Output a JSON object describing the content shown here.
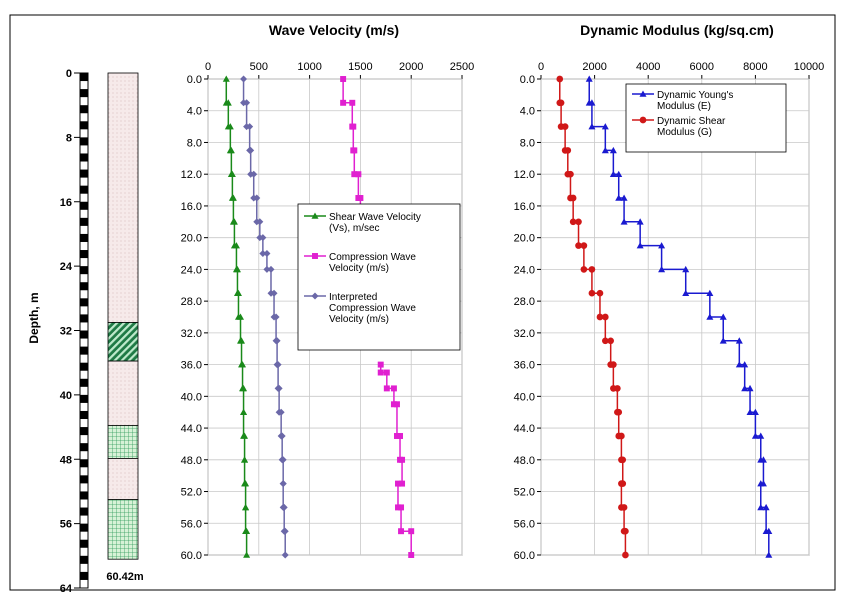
{
  "depth_log": {
    "ylabel": "Depth, m",
    "ticks": [
      "0",
      "8",
      "16",
      "24",
      "32",
      "40",
      "48",
      "56",
      "64"
    ],
    "tick_values": [
      0,
      8,
      16,
      24,
      32,
      40,
      48,
      56,
      64
    ],
    "total_depth_label": "60.42m",
    "layers": [
      {
        "from": 0,
        "to": 31.0,
        "pattern": "dots",
        "color": "#f4e6e6"
      },
      {
        "from": 31.0,
        "to": 35.8,
        "pattern": "diagonal",
        "color": "#2e9b5a"
      },
      {
        "from": 35.8,
        "to": 43.8,
        "pattern": "dots",
        "color": "#f4e6e6"
      },
      {
        "from": 43.8,
        "to": 47.9,
        "pattern": "grid",
        "color": "#2e9b5a"
      },
      {
        "from": 47.9,
        "to": 53.0,
        "pattern": "dots",
        "color": "#f4e6e6"
      },
      {
        "from": 53.0,
        "to": 60.42,
        "pattern": "grid",
        "color": "#2e9b5a"
      }
    ]
  },
  "chart_data": [
    {
      "type": "line",
      "title": "Wave Velocity (m/s)",
      "x_ticks": [
        "0",
        "500",
        "1000",
        "1500",
        "2000",
        "2500"
      ],
      "xlim": [
        0,
        2500
      ],
      "y_ticks": [
        "0.0",
        "4.0",
        "8.0",
        "12.0",
        "16.0",
        "20.0",
        "24.0",
        "28.0",
        "32.0",
        "36.0",
        "40.0",
        "44.0",
        "48.0",
        "52.0",
        "56.0",
        "60.0"
      ],
      "ylim": [
        0,
        60
      ],
      "grid": true,
      "legend_position": "right",
      "series": [
        {
          "name": "Shear Wave Velocity (Vs), m/sec",
          "color": "#1a8a1a",
          "marker": "triangle",
          "points": [
            [
              180,
              0
            ],
            [
              180,
              3
            ],
            [
              200,
              3
            ],
            [
              200,
              6
            ],
            [
              220,
              6
            ],
            [
              220,
              9
            ],
            [
              230,
              9
            ],
            [
              230,
              12
            ],
            [
              240,
              12
            ],
            [
              240,
              15
            ],
            [
              250,
              15
            ],
            [
              250,
              18
            ],
            [
              260,
              18
            ],
            [
              260,
              21
            ],
            [
              280,
              21
            ],
            [
              280,
              24
            ],
            [
              290,
              24
            ],
            [
              290,
              27
            ],
            [
              300,
              27
            ],
            [
              300,
              30
            ],
            [
              320,
              30
            ],
            [
              320,
              33
            ],
            [
              330,
              33
            ],
            [
              330,
              36
            ],
            [
              340,
              36
            ],
            [
              340,
              39
            ],
            [
              350,
              39
            ],
            [
              350,
              42
            ],
            [
              350,
              42
            ],
            [
              350,
              45
            ],
            [
              360,
              45
            ],
            [
              360,
              48
            ],
            [
              360,
              48
            ],
            [
              360,
              51
            ],
            [
              370,
              51
            ],
            [
              370,
              54
            ],
            [
              370,
              54
            ],
            [
              370,
              57
            ],
            [
              380,
              57
            ],
            [
              380,
              60
            ]
          ]
        },
        {
          "name": "Compression Wave Velocity (m/s)",
          "color": "#e020d0",
          "marker": "square",
          "points": [
            [
              1330,
              0
            ],
            [
              1330,
              3
            ],
            [
              1420,
              3
            ],
            [
              1420,
              6
            ],
            [
              1430,
              6
            ],
            [
              1430,
              9
            ],
            [
              1440,
              9
            ],
            [
              1440,
              12
            ],
            [
              1480,
              12
            ],
            [
              1480,
              15
            ],
            [
              1500,
              15
            ],
            [
              1500,
              18
            ],
            [
              1700,
              36
            ],
            [
              1700,
              37
            ],
            [
              1760,
              37
            ],
            [
              1760,
              39
            ],
            [
              1830,
              39
            ],
            [
              1830,
              41
            ],
            [
              1860,
              41
            ],
            [
              1860,
              45
            ],
            [
              1890,
              45
            ],
            [
              1890,
              48
            ],
            [
              1910,
              48
            ],
            [
              1910,
              51
            ],
            [
              1870,
              51
            ],
            [
              1870,
              54
            ],
            [
              1900,
              54
            ],
            [
              1900,
              57
            ],
            [
              2000,
              57
            ],
            [
              2000,
              60
            ]
          ]
        },
        {
          "name": "Interpreted Compression Wave Velocity (m/s)",
          "color": "#6b68a8",
          "marker": "diamond",
          "points": [
            [
              350,
              0
            ],
            [
              350,
              3
            ],
            [
              380,
              3
            ],
            [
              380,
              6
            ],
            [
              410,
              6
            ],
            [
              410,
              9
            ],
            [
              420,
              9
            ],
            [
              420,
              12
            ],
            [
              450,
              12
            ],
            [
              450,
              15
            ],
            [
              480,
              15
            ],
            [
              480,
              18
            ],
            [
              510,
              18
            ],
            [
              510,
              20
            ],
            [
              540,
              20
            ],
            [
              540,
              22
            ],
            [
              580,
              22
            ],
            [
              580,
              24
            ],
            [
              620,
              24
            ],
            [
              620,
              27
            ],
            [
              650,
              27
            ],
            [
              650,
              30
            ],
            [
              670,
              30
            ],
            [
              670,
              33
            ],
            [
              680,
              33
            ],
            [
              680,
              36
            ],
            [
              690,
              36
            ],
            [
              690,
              39
            ],
            [
              700,
              39
            ],
            [
              700,
              42
            ],
            [
              720,
              42
            ],
            [
              720,
              45
            ],
            [
              730,
              45
            ],
            [
              730,
              48
            ],
            [
              740,
              48
            ],
            [
              740,
              51
            ],
            [
              740,
              51
            ],
            [
              740,
              54
            ],
            [
              750,
              54
            ],
            [
              750,
              57
            ],
            [
              760,
              57
            ],
            [
              760,
              60
            ]
          ]
        }
      ]
    },
    {
      "type": "line",
      "title": "Dynamic Modulus (kg/sq.cm)",
      "x_ticks": [
        "0",
        "2000",
        "4000",
        "6000",
        "8000",
        "10000"
      ],
      "xlim": [
        0,
        10000
      ],
      "y_ticks": [
        "0.0",
        "4.0",
        "8.0",
        "12.0",
        "16.0",
        "20.0",
        "24.0",
        "28.0",
        "32.0",
        "36.0",
        "40.0",
        "44.0",
        "48.0",
        "52.0",
        "56.0",
        "60.0"
      ],
      "ylim": [
        0,
        60
      ],
      "grid": true,
      "legend_position": "top-right",
      "series": [
        {
          "name": "Dynamic Young's Modulus (E)",
          "color": "#1a1ad0",
          "marker": "triangle",
          "points": [
            [
              1800,
              0
            ],
            [
              1800,
              3
            ],
            [
              1900,
              3
            ],
            [
              1900,
              6
            ],
            [
              2400,
              6
            ],
            [
              2400,
              9
            ],
            [
              2700,
              9
            ],
            [
              2700,
              12
            ],
            [
              2900,
              12
            ],
            [
              2900,
              15
            ],
            [
              3100,
              15
            ],
            [
              3100,
              18
            ],
            [
              3700,
              18
            ],
            [
              3700,
              21
            ],
            [
              4500,
              21
            ],
            [
              4500,
              24
            ],
            [
              5400,
              24
            ],
            [
              5400,
              27
            ],
            [
              6300,
              27
            ],
            [
              6300,
              30
            ],
            [
              6800,
              30
            ],
            [
              6800,
              33
            ],
            [
              7400,
              33
            ],
            [
              7400,
              36
            ],
            [
              7600,
              36
            ],
            [
              7600,
              39
            ],
            [
              7800,
              39
            ],
            [
              7800,
              42
            ],
            [
              8000,
              42
            ],
            [
              8000,
              45
            ],
            [
              8200,
              45
            ],
            [
              8200,
              48
            ],
            [
              8300,
              48
            ],
            [
              8300,
              51
            ],
            [
              8200,
              51
            ],
            [
              8200,
              54
            ],
            [
              8400,
              54
            ],
            [
              8400,
              57
            ],
            [
              8500,
              57
            ],
            [
              8500,
              60
            ]
          ]
        },
        {
          "name": "Dynamic Shear Modulus (G)",
          "color": "#d01818",
          "marker": "circle",
          "points": [
            [
              700,
              0
            ],
            [
              700,
              3
            ],
            [
              750,
              3
            ],
            [
              750,
              6
            ],
            [
              900,
              6
            ],
            [
              900,
              9
            ],
            [
              1000,
              9
            ],
            [
              1000,
              12
            ],
            [
              1100,
              12
            ],
            [
              1100,
              15
            ],
            [
              1200,
              15
            ],
            [
              1200,
              18
            ],
            [
              1400,
              18
            ],
            [
              1400,
              21
            ],
            [
              1600,
              21
            ],
            [
              1600,
              24
            ],
            [
              1900,
              24
            ],
            [
              1900,
              27
            ],
            [
              2200,
              27
            ],
            [
              2200,
              30
            ],
            [
              2400,
              30
            ],
            [
              2400,
              33
            ],
            [
              2600,
              33
            ],
            [
              2600,
              36
            ],
            [
              2700,
              36
            ],
            [
              2700,
              39
            ],
            [
              2850,
              39
            ],
            [
              2850,
              42
            ],
            [
              2900,
              42
            ],
            [
              2900,
              45
            ],
            [
              3000,
              45
            ],
            [
              3000,
              48
            ],
            [
              3050,
              48
            ],
            [
              3050,
              51
            ],
            [
              3000,
              51
            ],
            [
              3000,
              54
            ],
            [
              3100,
              54
            ],
            [
              3100,
              57
            ],
            [
              3150,
              57
            ],
            [
              3150,
              60
            ]
          ]
        }
      ]
    }
  ]
}
